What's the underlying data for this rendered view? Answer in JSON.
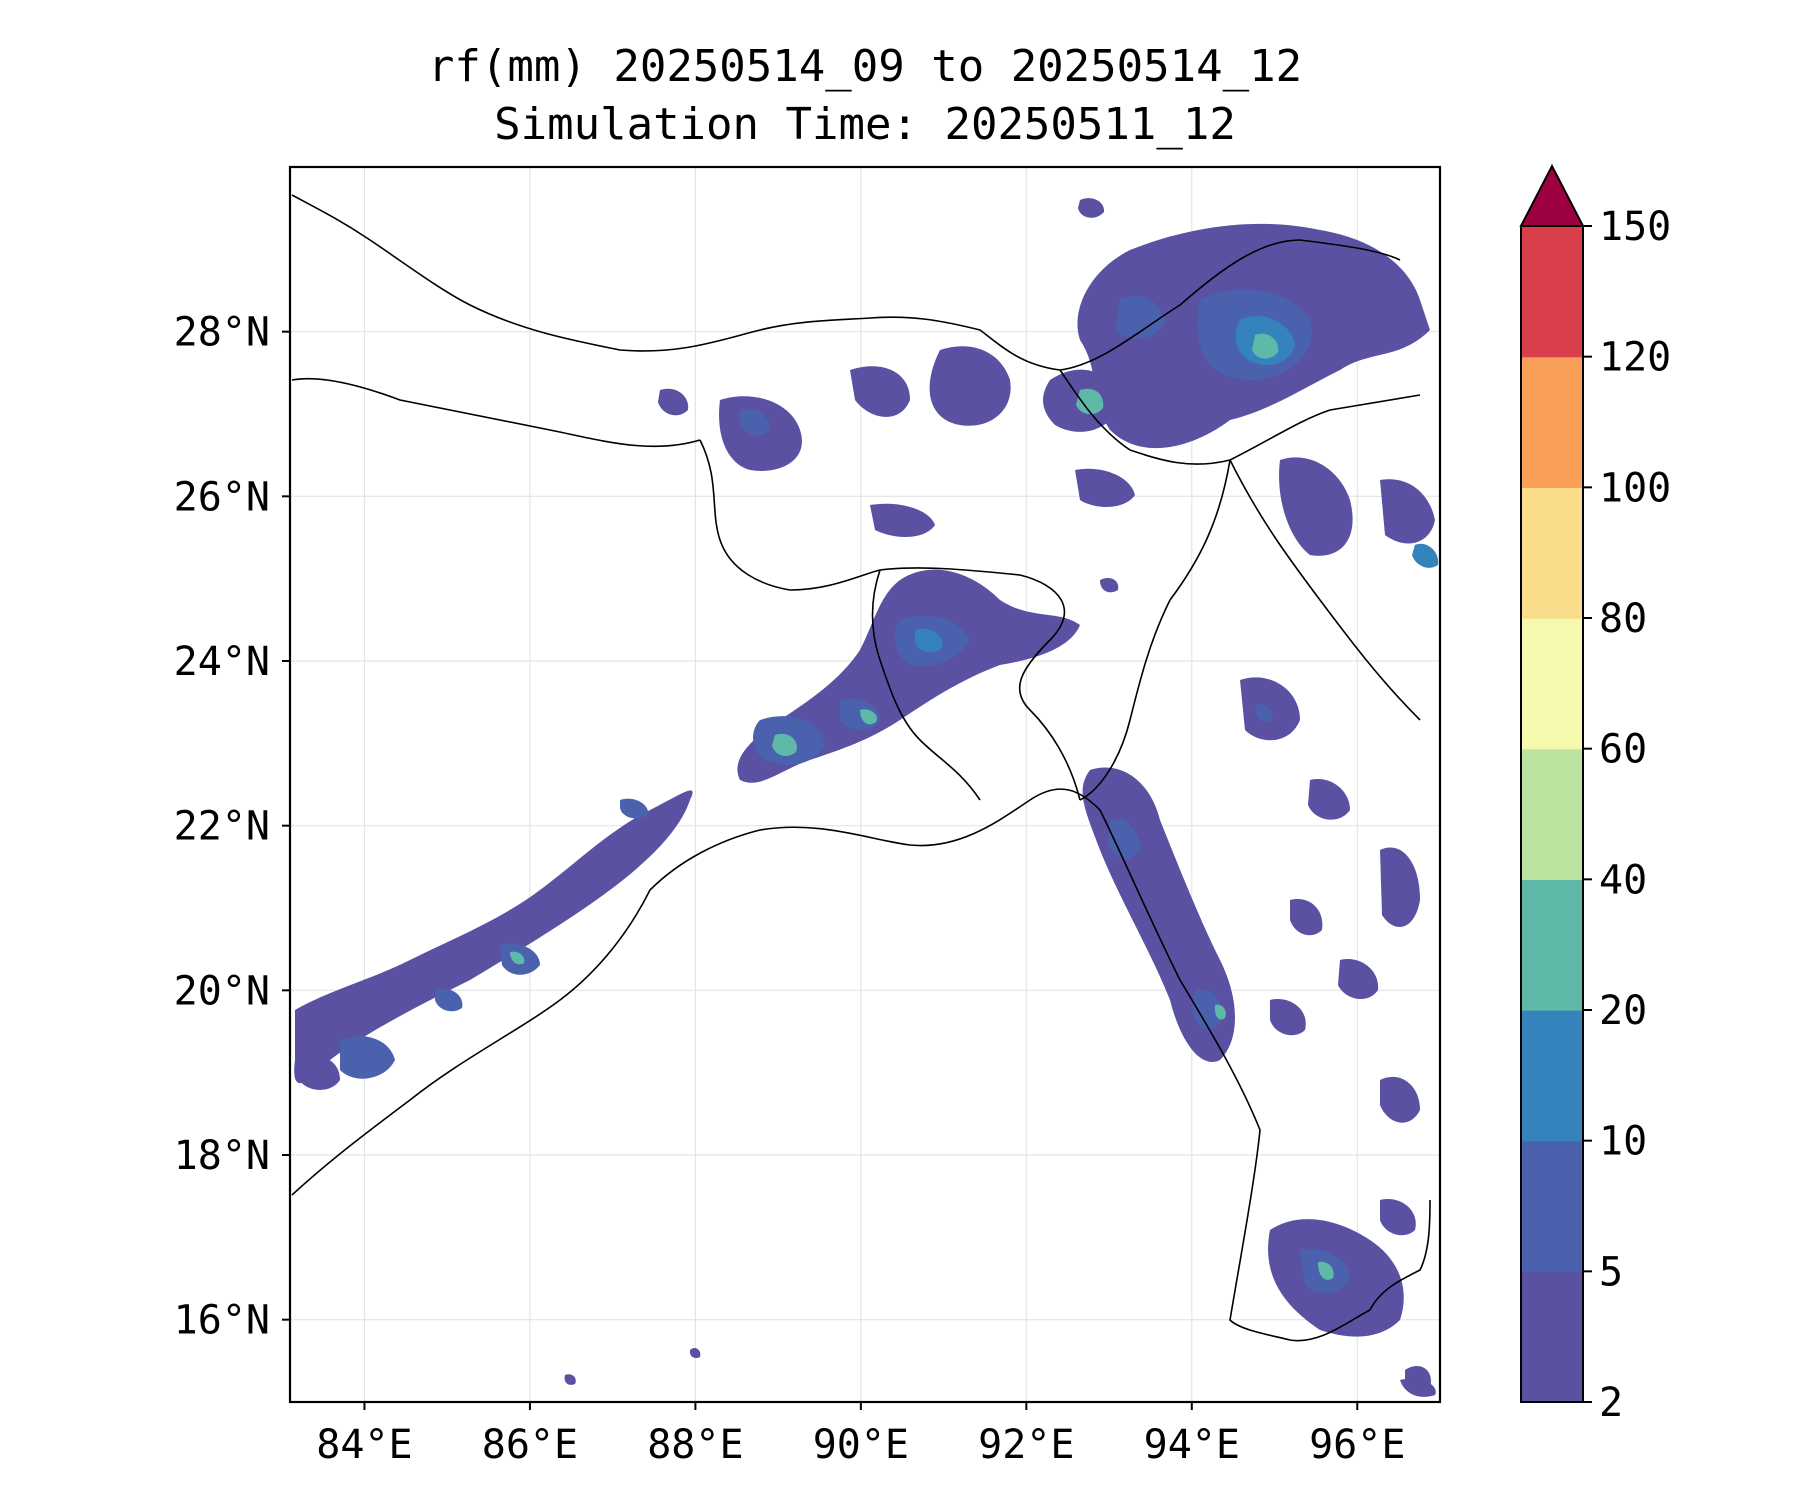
{
  "title": {
    "line1": "rf(mm) 20250514_09 to 20250514_12",
    "line2": "Simulation Time: 20250511_12"
  },
  "map": {
    "lon_range": [
      83.1,
      97.0
    ],
    "lat_range": [
      15.0,
      30.0
    ],
    "lon_ticks": [
      {
        "value": 84,
        "label": "84°E"
      },
      {
        "value": 86,
        "label": "86°E"
      },
      {
        "value": 88,
        "label": "88°E"
      },
      {
        "value": 90,
        "label": "90°E"
      },
      {
        "value": 92,
        "label": "92°E"
      },
      {
        "value": 94,
        "label": "94°E"
      },
      {
        "value": 96,
        "label": "96°E"
      }
    ],
    "lat_ticks": [
      {
        "value": 16,
        "label": "16°N"
      },
      {
        "value": 18,
        "label": "18°N"
      },
      {
        "value": 20,
        "label": "20°N"
      },
      {
        "value": 22,
        "label": "22°N"
      },
      {
        "value": 24,
        "label": "24°N"
      },
      {
        "value": 26,
        "label": "26°N"
      },
      {
        "value": 28,
        "label": "28°N"
      }
    ],
    "gridlines": true
  },
  "colorbar": {
    "levels": [
      "2",
      "5",
      "10",
      "20",
      "40",
      "60",
      "80",
      "100",
      "120",
      "150"
    ],
    "colors": [
      "#5a51a2",
      "#4a62ad",
      "#3583bc",
      "#5fb9a8",
      "#bde3a1",
      "#f5f9ae",
      "#fadd8b",
      "#f89f5a",
      "#d93e4b",
      "#9e0142"
    ],
    "extend": "max"
  }
}
